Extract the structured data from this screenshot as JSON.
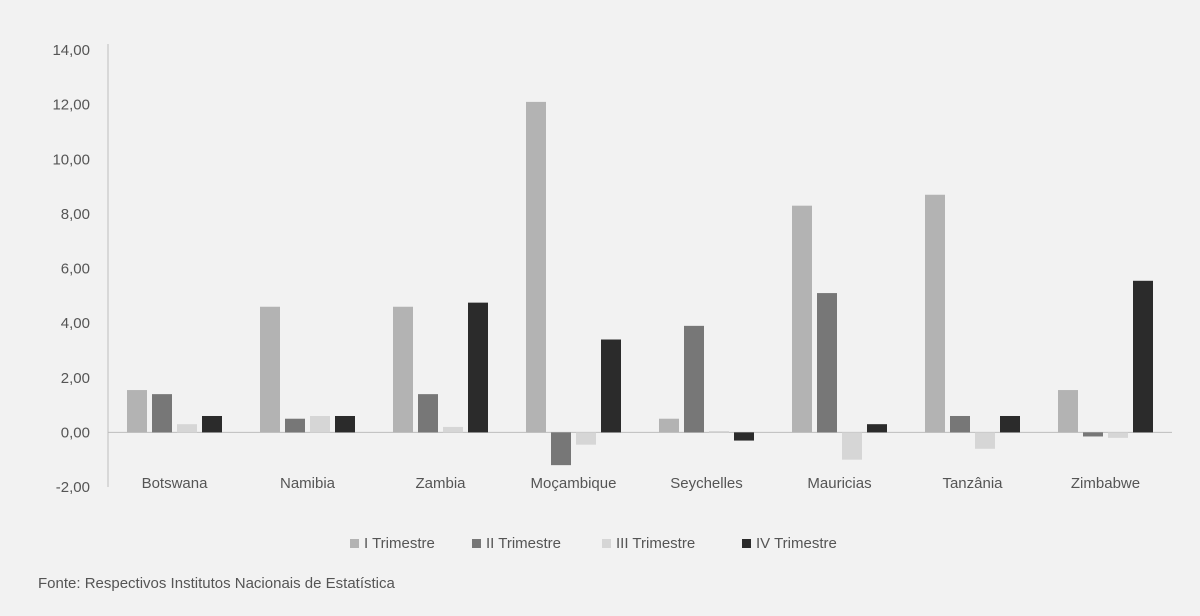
{
  "chart_data": {
    "type": "bar",
    "categories": [
      "Botswana",
      "Namibia",
      "Zambia",
      "Moçambique",
      "Seychelles",
      "Mauricias",
      "Tanzânia",
      "Zimbabwe"
    ],
    "series": [
      {
        "name": "I Trimestre",
        "color": "#b3b3b3",
        "values": [
          1.55,
          4.6,
          4.6,
          12.1,
          0.5,
          8.3,
          8.7,
          1.55
        ]
      },
      {
        "name": "II Trimestre",
        "color": "#777777",
        "values": [
          1.4,
          0.5,
          1.4,
          -1.2,
          3.9,
          5.1,
          0.6,
          -0.15
        ]
      },
      {
        "name": "III Trimestre",
        "color": "#d6d6d6",
        "values": [
          0.3,
          0.6,
          0.2,
          -0.45,
          0.05,
          -1.0,
          -0.6,
          -0.2
        ]
      },
      {
        "name": "IV Trimestre",
        "color": "#2b2b2b",
        "values": [
          0.6,
          0.6,
          4.75,
          3.4,
          -0.3,
          0.3,
          0.6,
          5.55
        ]
      }
    ],
    "yticks": [
      "14,00",
      "12,00",
      "10,00",
      "8,00",
      "6,00",
      "4,00",
      "2,00",
      "0,00",
      "-2,00"
    ],
    "ylim": [
      -2,
      14
    ],
    "xlabel": "",
    "ylabel": "",
    "title": "",
    "legend_position": "bottom",
    "grid": false
  },
  "source_note": "Fonte: Respectivos Institutos Nacionais de Estatística"
}
